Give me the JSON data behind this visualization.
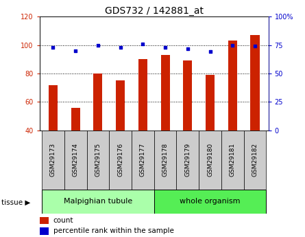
{
  "title": "GDS732 / 142881_at",
  "samples": [
    "GSM29173",
    "GSM29174",
    "GSM29175",
    "GSM29176",
    "GSM29177",
    "GSM29178",
    "GSM29179",
    "GSM29180",
    "GSM29181",
    "GSM29182"
  ],
  "counts": [
    72,
    56,
    80,
    75,
    90,
    93,
    89,
    79,
    103,
    107
  ],
  "percentiles": [
    73,
    70,
    75,
    73,
    76,
    73,
    72,
    69,
    75,
    74
  ],
  "malpighian_count": 5,
  "whole_organism_count": 5,
  "bar_color": "#cc2200",
  "dot_color": "#0000cc",
  "ylim_left": [
    40,
    120
  ],
  "ylim_right": [
    0,
    100
  ],
  "yticks_left": [
    40,
    60,
    80,
    100,
    120
  ],
  "yticks_right": [
    0,
    25,
    50,
    75,
    100
  ],
  "grid_lines": [
    60,
    80,
    100
  ],
  "tissue_color_malp": "#aaffaa",
  "tissue_color_whole": "#55ee55",
  "sample_box_color": "#cccccc",
  "plot_bg": "#ffffff",
  "bar_width": 0.4
}
